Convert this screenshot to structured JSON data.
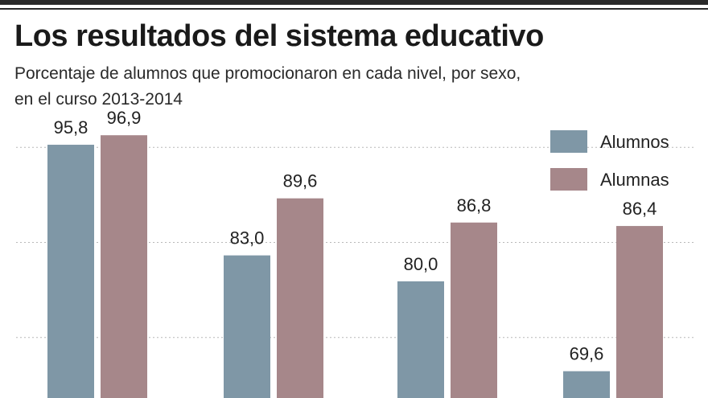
{
  "chart_data": {
    "type": "bar",
    "title": "Los resultados del sistema educativo",
    "subtitle": "Porcentaje de alumnos que promocionaron en cada nivel, por sexo, en el curso 2013-2014",
    "categories": [
      "",
      "",
      "",
      ""
    ],
    "series": [
      {
        "name": "Alumnos",
        "color": "#7f97a6",
        "values": [
          95.8,
          83.0,
          80.0,
          69.6
        ],
        "labels": [
          "95,8",
          "83,0",
          "80,0",
          "69,6"
        ]
      },
      {
        "name": "Alumnas",
        "color": "#a6878a",
        "values": [
          96.9,
          89.6,
          86.8,
          86.4
        ],
        "labels": [
          "96,9",
          "89,6",
          "86,8",
          "86,4"
        ]
      }
    ],
    "ylim": [
      66.5,
      98.5
    ],
    "gridlines": [
      73.5,
      84.5,
      95.5
    ],
    "grid": true,
    "legend": "top-right",
    "xlabel": "",
    "ylabel": ""
  }
}
